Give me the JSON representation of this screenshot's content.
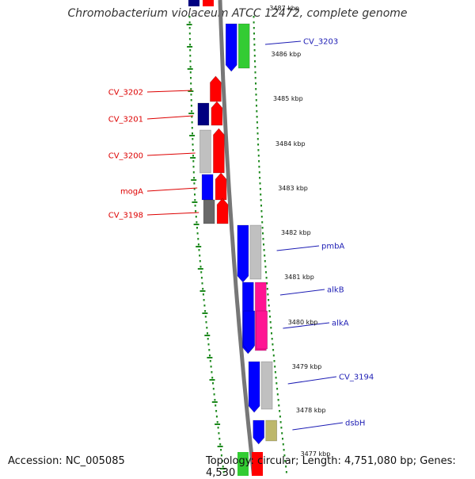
{
  "title": "Chromobacterium violaceum ATCC 12472, complete genome",
  "accession": "Accession: NC_005085",
  "topology": "Topology: circular; Length: 4,751,080 bp; Genes: 4,530",
  "colors": {
    "forward_label": "#1c1cb4",
    "reverse_label": "#dd0000",
    "backbone": "#777777",
    "dots": "#1f8a1f"
  },
  "kbp_ticks": [
    "3487 kbp",
    "3486 kbp",
    "3485 kbp",
    "3484 kbp",
    "3483 kbp",
    "3482 kbp",
    "3481 kbp",
    "3480 kbp",
    "3479 kbp",
    "3478 kbp",
    "3477 kbp"
  ],
  "reverse_genes": [
    {
      "label": "CV_3202",
      "color": "#ff0000"
    },
    {
      "label": "CV_3201",
      "color": "#ff0000",
      "partner_color": "#000080"
    },
    {
      "label": "CV_3200",
      "color": "#ff0000",
      "partner_color": "#c0c0c0"
    },
    {
      "label": "mogA",
      "color": "#ff0000",
      "partner_color": "#0000ff"
    },
    {
      "label": "CV_3198",
      "color": "#ff0000",
      "partner_color": "#696969"
    }
  ],
  "forward_genes": [
    {
      "label": "CV_3203",
      "color": "#33cc33",
      "partner_color": "#0000ff"
    },
    {
      "label": "pmbA",
      "color": "#c0c0c0",
      "partner_color": "#0000ff"
    },
    {
      "label": "alkB",
      "color": "#ff1493",
      "partner_color": "#0000ff"
    },
    {
      "label": "alkA",
      "color": "#ff1493",
      "partner_color": "#0000ff"
    },
    {
      "label": "CV_3194",
      "color": "#c0c0c0",
      "partner_color": "#0000ff"
    },
    {
      "label": "dsbH",
      "color": "#bdb76b",
      "partner_color": "#0000ff"
    }
  ]
}
